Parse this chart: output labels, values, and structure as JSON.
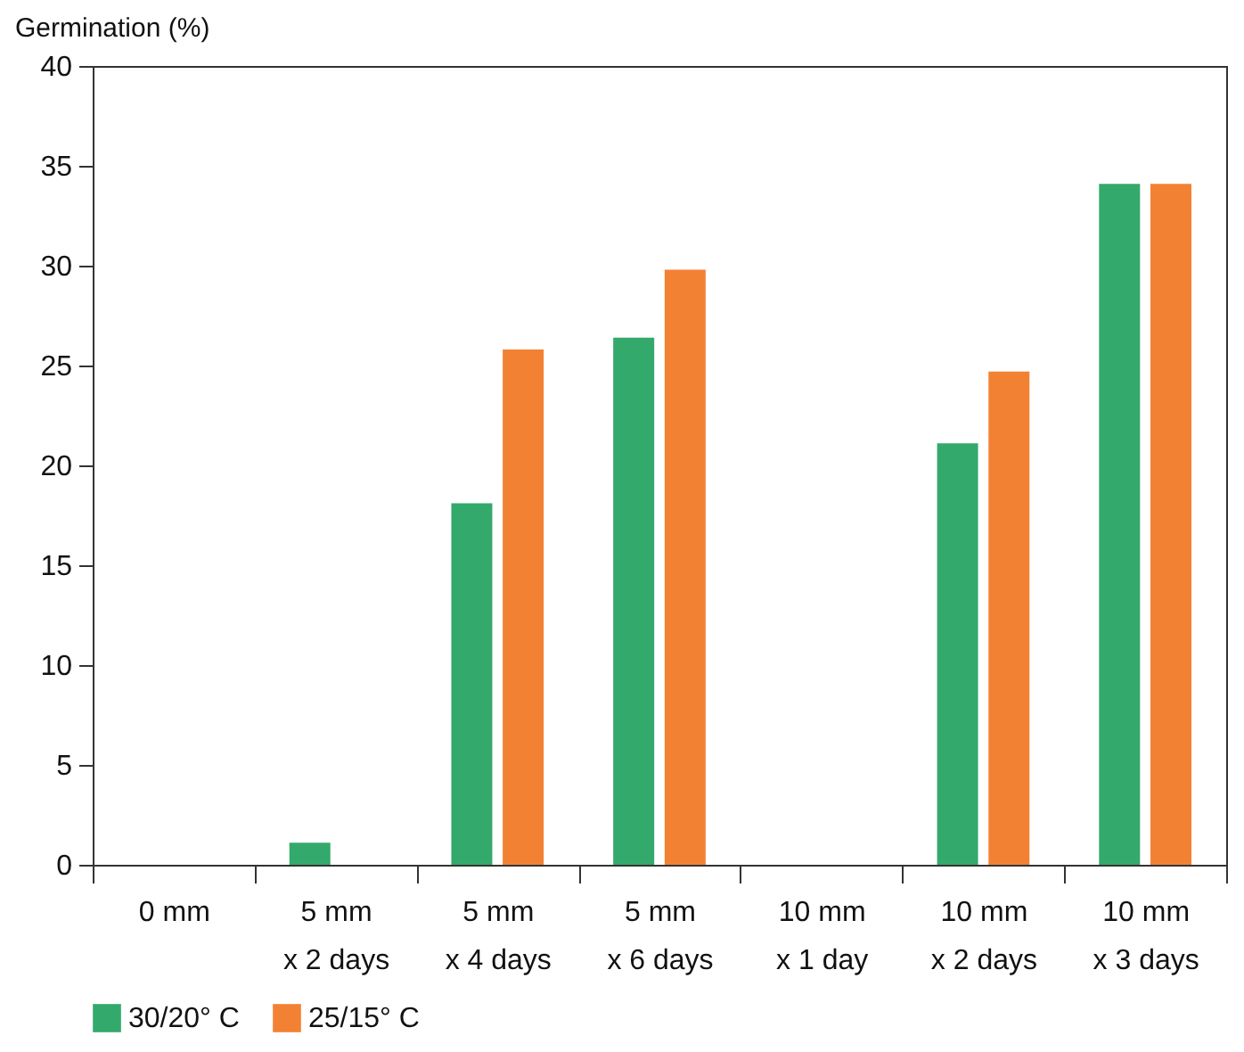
{
  "chart_data": {
    "type": "bar",
    "ylabel": "Germination (%)",
    "categories": [
      "0 mm",
      "5 mm\nx 2 days",
      "5 mm\nx 4 days",
      "5 mm\nx 6 days",
      "10 mm\nx 1 day",
      "10 mm\nx 2 days",
      "10 mm\nx 3 days"
    ],
    "series": [
      {
        "name": "30/20° C",
        "color": "#34a96c",
        "values": [
          0,
          1.1,
          18.1,
          26.4,
          0,
          21.1,
          34.1
        ]
      },
      {
        "name": "25/15° C",
        "color": "#f38134",
        "values": [
          0,
          0,
          25.8,
          29.8,
          0,
          24.7,
          34.1
        ]
      }
    ],
    "ylim": [
      0,
      40
    ],
    "yticks": [
      0,
      5,
      10,
      15,
      20,
      25,
      30,
      35,
      40
    ],
    "grid": false,
    "legend": "bottom left"
  }
}
